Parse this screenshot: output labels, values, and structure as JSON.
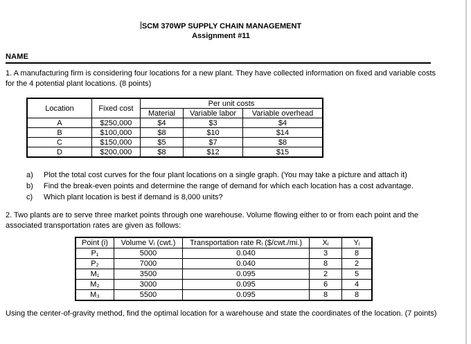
{
  "document": {
    "title": "SCM 370WP SUPPLY CHAIN MANAGEMENT",
    "subtitle": "Assignment #11",
    "name_label": "NAME"
  },
  "question1": {
    "intro": "1. A manufacturing firm is considering four locations for a new plant. They have collected information on fixed and variable costs for the 4 potential plant locations. (8 points)",
    "table": {
      "header": {
        "location": "Location",
        "fixed_cost": "Fixed cost",
        "per_unit_costs": "Per unit costs",
        "material": "Material",
        "variable_labor": "Variable labor",
        "variable_overhead": "Variable overhead"
      },
      "rows": [
        {
          "location": "A",
          "fixed_cost": "$250,000",
          "material": "$4",
          "variable_labor": "$3",
          "variable_overhead": "$4"
        },
        {
          "location": "B",
          "fixed_cost": "$100,000",
          "material": "$8",
          "variable_labor": "$10",
          "variable_overhead": "$14"
        },
        {
          "location": "C",
          "fixed_cost": "$150,000",
          "material": "$5",
          "variable_labor": "$7",
          "variable_overhead": "$8"
        },
        {
          "location": "D",
          "fixed_cost": "$200,000",
          "material": "$8",
          "variable_labor": "$12",
          "variable_overhead": "$15"
        }
      ]
    },
    "subparts": [
      {
        "label": "a)",
        "text": "Plot the total cost curves for the four plant locations on a single graph. (You may take a picture and attach it)"
      },
      {
        "label": "b)",
        "text": "Find the break-even points and determine the range of demand for which each location has a cost advantage."
      },
      {
        "label": "c)",
        "text": "Which plant location is best if demand is 8,000 units?"
      }
    ]
  },
  "question2": {
    "intro": "2. Two plants are to serve three market points through one warehouse. Volume flowing either to or from each point and the associated transportation rates are given as follows:",
    "table": {
      "header": {
        "point": "Point (i)",
        "volume": "Volume Vᵢ (cwt.)",
        "rate": "Transportation rate Rᵢ ($/cwt./mi.)",
        "x": "Xᵢ",
        "y": "Yᵢ"
      },
      "rows": [
        {
          "point": "P₁",
          "volume": "5000",
          "rate": "0.040",
          "x": "3",
          "y": "8"
        },
        {
          "point": "P₂",
          "volume": "7000",
          "rate": "0.040",
          "x": "8",
          "y": "2"
        },
        {
          "point": "M₁",
          "volume": "3500",
          "rate": "0.095",
          "x": "2",
          "y": "5"
        },
        {
          "point": "M₂",
          "volume": "3000",
          "rate": "0.095",
          "x": "6",
          "y": "4"
        },
        {
          "point": "M₃",
          "volume": "5500",
          "rate": "0.095",
          "x": "8",
          "y": "8"
        }
      ]
    },
    "closing": "Using the center-of-gravity method, find the optimal location for a warehouse and state the coordinates of the location. (7 points)"
  }
}
